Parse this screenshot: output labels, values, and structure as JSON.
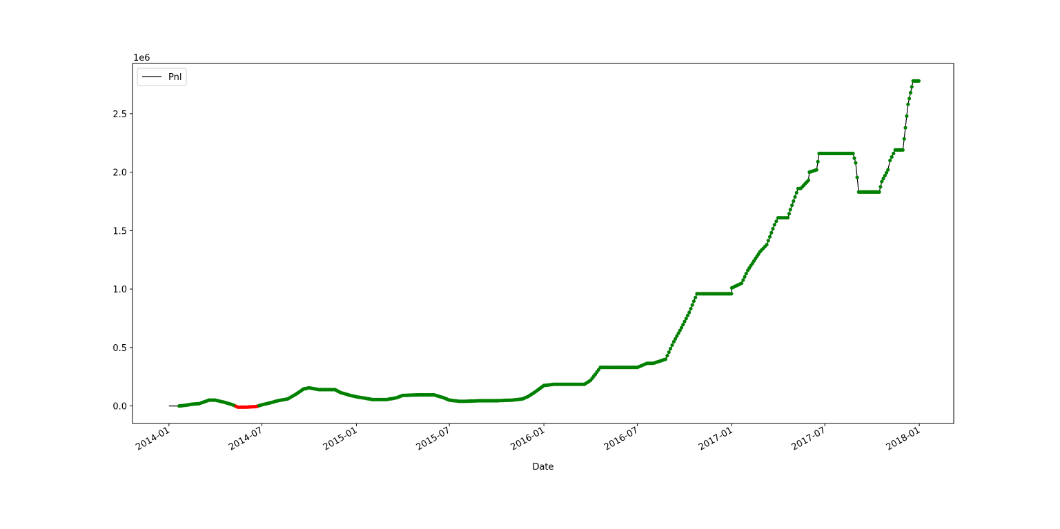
{
  "chart_data": {
    "type": "line",
    "title": "",
    "xlabel": "Date",
    "ylabel": "",
    "y_offset_label": "1e6",
    "x_range": [
      "2013-10-22",
      "2018-03-09"
    ],
    "ylim": [
      -0.15,
      2.93
    ],
    "x_ticks": [
      "2014-01",
      "2014-07",
      "2015-01",
      "2015-07",
      "2016-01",
      "2016-07",
      "2017-01",
      "2017-07",
      "2018-01"
    ],
    "y_ticks": [
      0.0,
      0.5,
      1.0,
      1.5,
      2.0,
      2.5
    ],
    "y_tick_labels": [
      "0.0",
      "0.5",
      "1.0",
      "1.5",
      "2.0",
      "2.5"
    ],
    "legend": {
      "entries": [
        "Pnl"
      ],
      "position": "top-left"
    },
    "grid": false,
    "colors": {
      "line": "#000000",
      "positive_marker": "#008000",
      "negative_marker": "#ff0000"
    },
    "series": [
      {
        "name": "Pnl",
        "x": [
          "2014-01-01",
          "2014-01-21",
          "2014-02-01",
          "2014-02-15",
          "2014-03-01",
          "2014-03-20",
          "2014-04-01",
          "2014-04-20",
          "2014-05-05",
          "2014-05-15",
          "2014-06-01",
          "2014-06-20",
          "2014-07-01",
          "2014-07-20",
          "2014-08-01",
          "2014-08-20",
          "2014-09-05",
          "2014-09-20",
          "2014-10-01",
          "2014-10-20",
          "2014-11-01",
          "2014-11-20",
          "2014-12-01",
          "2014-12-20",
          "2015-01-05",
          "2015-01-20",
          "2015-02-01",
          "2015-03-01",
          "2015-03-20",
          "2015-04-01",
          "2015-05-01",
          "2015-06-01",
          "2015-06-20",
          "2015-07-01",
          "2015-07-20",
          "2015-08-01",
          "2015-09-01",
          "2015-10-01",
          "2015-11-01",
          "2015-11-20",
          "2015-12-01",
          "2015-12-15",
          "2016-01-01",
          "2016-01-20",
          "2016-02-01",
          "2016-03-01",
          "2016-03-20",
          "2016-04-01",
          "2016-04-10",
          "2016-04-20",
          "2016-05-01",
          "2016-06-01",
          "2016-07-01",
          "2016-07-20",
          "2016-08-01",
          "2016-08-25",
          "2016-09-10",
          "2016-09-25",
          "2016-10-10",
          "2016-10-25",
          "2016-11-01",
          "2016-12-01",
          "2016-12-31",
          "2017-01-01",
          "2017-01-20",
          "2017-02-01",
          "2017-02-10",
          "2017-02-25",
          "2017-03-10",
          "2017-03-25",
          "2017-04-01",
          "2017-04-20",
          "2017-04-25",
          "2017-05-10",
          "2017-05-15",
          "2017-05-30",
          "2017-06-01",
          "2017-06-15",
          "2017-06-20",
          "2017-07-01",
          "2017-08-01",
          "2017-08-25",
          "2017-08-30",
          "2017-09-05",
          "2017-09-20",
          "2017-10-01",
          "2017-10-15",
          "2017-10-20",
          "2017-11-01",
          "2017-11-05",
          "2017-11-15",
          "2017-11-30",
          "2017-12-05",
          "2017-12-10",
          "2017-12-15",
          "2017-12-20",
          "2017-12-31"
        ],
        "y": [
          0.0,
          0.0,
          0.005,
          0.015,
          0.02,
          0.05,
          0.05,
          0.03,
          0.01,
          -0.01,
          -0.01,
          -0.005,
          0.01,
          0.03,
          0.045,
          0.06,
          0.1,
          0.145,
          0.155,
          0.14,
          0.14,
          0.14,
          0.115,
          0.09,
          0.075,
          0.065,
          0.055,
          0.055,
          0.07,
          0.09,
          0.095,
          0.095,
          0.07,
          0.05,
          0.04,
          0.04,
          0.045,
          0.045,
          0.05,
          0.06,
          0.08,
          0.12,
          0.175,
          0.185,
          0.185,
          0.185,
          0.185,
          0.22,
          0.27,
          0.33,
          0.33,
          0.33,
          0.33,
          0.365,
          0.365,
          0.4,
          0.55,
          0.67,
          0.8,
          0.96,
          0.96,
          0.96,
          0.96,
          1.01,
          1.05,
          1.16,
          1.22,
          1.32,
          1.38,
          1.55,
          1.61,
          1.61,
          1.68,
          1.86,
          1.86,
          1.93,
          2.0,
          2.02,
          2.16,
          2.16,
          2.16,
          2.16,
          2.08,
          1.83,
          1.83,
          1.83,
          1.83,
          1.92,
          2.02,
          2.1,
          2.19,
          2.19,
          2.38,
          2.58,
          2.68,
          2.78,
          2.78
        ]
      }
    ]
  }
}
